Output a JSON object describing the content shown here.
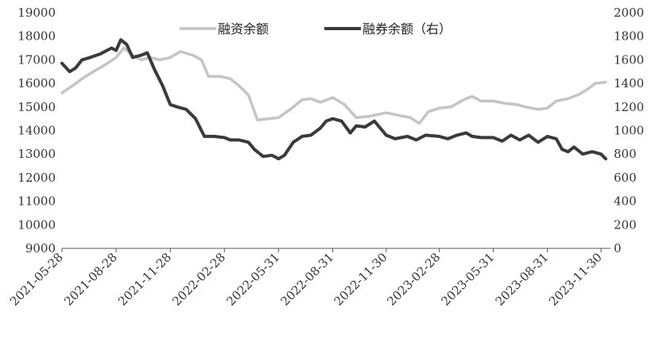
{
  "chart_data": {
    "type": "line",
    "title": "",
    "xlabel": "",
    "ylabel": "",
    "x_ticks": [
      "2021-05-28",
      "2021-08-28",
      "2021-11-28",
      "2022-02-28",
      "2022-05-31",
      "2022-08-31",
      "2022-11-30",
      "2023-02-28",
      "2023-05-31",
      "2023-08-31",
      "2023-11-30"
    ],
    "y_left": {
      "lim": [
        9000,
        19000
      ],
      "ticks": [
        9000,
        10000,
        11000,
        12000,
        13000,
        14000,
        15000,
        16000,
        17000,
        18000,
        19000
      ]
    },
    "y_right": {
      "lim": [
        0,
        2000
      ],
      "ticks": [
        0,
        200,
        400,
        600,
        800,
        1000,
        1200,
        1400,
        1600,
        1800,
        2000
      ]
    },
    "legend": {
      "placement": "top-center"
    },
    "series": [
      {
        "name": "融资余额",
        "axis": "left",
        "color": "#c4c4c4",
        "points": [
          [
            "2021-05-28",
            15600
          ],
          [
            "2021-06-15",
            15900
          ],
          [
            "2021-07-01",
            16200
          ],
          [
            "2021-07-20",
            16500
          ],
          [
            "2021-08-10",
            16800
          ],
          [
            "2021-08-28",
            17100
          ],
          [
            "2021-09-10",
            17500
          ],
          [
            "2021-09-25",
            17200
          ],
          [
            "2021-10-10",
            17000
          ],
          [
            "2021-10-25",
            17100
          ],
          [
            "2021-11-10",
            17000
          ],
          [
            "2021-11-28",
            17100
          ],
          [
            "2021-12-15",
            17350
          ],
          [
            "2022-01-05",
            17200
          ],
          [
            "2022-01-20",
            17000
          ],
          [
            "2022-02-01",
            16300
          ],
          [
            "2022-02-20",
            16300
          ],
          [
            "2022-03-10",
            16200
          ],
          [
            "2022-03-25",
            15900
          ],
          [
            "2022-04-10",
            15500
          ],
          [
            "2022-04-25",
            14450
          ],
          [
            "2022-05-15",
            14500
          ],
          [
            "2022-05-31",
            14550
          ],
          [
            "2022-06-20",
            14900
          ],
          [
            "2022-07-10",
            15300
          ],
          [
            "2022-07-25",
            15350
          ],
          [
            "2022-08-10",
            15200
          ],
          [
            "2022-08-31",
            15400
          ],
          [
            "2022-09-20",
            15100
          ],
          [
            "2022-10-10",
            14550
          ],
          [
            "2022-10-31",
            14600
          ],
          [
            "2022-11-30",
            14750
          ],
          [
            "2022-12-20",
            14650
          ],
          [
            "2023-01-10",
            14550
          ],
          [
            "2023-01-25",
            14300
          ],
          [
            "2023-02-10",
            14800
          ],
          [
            "2023-02-28",
            14950
          ],
          [
            "2023-03-20",
            15000
          ],
          [
            "2023-04-10",
            15300
          ],
          [
            "2023-04-25",
            15450
          ],
          [
            "2023-05-10",
            15250
          ],
          [
            "2023-05-31",
            15250
          ],
          [
            "2023-06-20",
            15150
          ],
          [
            "2023-07-10",
            15100
          ],
          [
            "2023-07-25",
            15000
          ],
          [
            "2023-08-15",
            14900
          ],
          [
            "2023-08-31",
            14950
          ],
          [
            "2023-09-15",
            15250
          ],
          [
            "2023-10-05",
            15350
          ],
          [
            "2023-10-25",
            15550
          ],
          [
            "2023-11-10",
            15800
          ],
          [
            "2023-11-20",
            16000
          ],
          [
            "2023-12-08",
            16050
          ]
        ]
      },
      {
        "name": "融券余额（右）",
        "axis": "right",
        "color": "#3a3a3a",
        "points": [
          [
            "2021-05-28",
            1570
          ],
          [
            "2021-06-10",
            1500
          ],
          [
            "2021-06-20",
            1530
          ],
          [
            "2021-07-01",
            1600
          ],
          [
            "2021-07-15",
            1620
          ],
          [
            "2021-08-01",
            1650
          ],
          [
            "2021-08-20",
            1700
          ],
          [
            "2021-08-28",
            1680
          ],
          [
            "2021-09-05",
            1770
          ],
          [
            "2021-09-15",
            1730
          ],
          [
            "2021-09-25",
            1620
          ],
          [
            "2021-10-10",
            1640
          ],
          [
            "2021-10-20",
            1660
          ],
          [
            "2021-11-01",
            1520
          ],
          [
            "2021-11-15",
            1380
          ],
          [
            "2021-11-28",
            1220
          ],
          [
            "2021-12-10",
            1200
          ],
          [
            "2021-12-25",
            1180
          ],
          [
            "2022-01-10",
            1100
          ],
          [
            "2022-01-25",
            950
          ],
          [
            "2022-02-10",
            950
          ],
          [
            "2022-02-28",
            940
          ],
          [
            "2022-03-10",
            920
          ],
          [
            "2022-03-25",
            920
          ],
          [
            "2022-04-10",
            900
          ],
          [
            "2022-04-20",
            840
          ],
          [
            "2022-05-05",
            780
          ],
          [
            "2022-05-20",
            790
          ],
          [
            "2022-05-31",
            760
          ],
          [
            "2022-06-10",
            790
          ],
          [
            "2022-06-25",
            900
          ],
          [
            "2022-07-10",
            950
          ],
          [
            "2022-07-25",
            960
          ],
          [
            "2022-08-10",
            1020
          ],
          [
            "2022-08-20",
            1080
          ],
          [
            "2022-08-31",
            1100
          ],
          [
            "2022-09-15",
            1080
          ],
          [
            "2022-09-30",
            980
          ],
          [
            "2022-10-10",
            1040
          ],
          [
            "2022-10-25",
            1030
          ],
          [
            "2022-11-10",
            1080
          ],
          [
            "2022-11-30",
            960
          ],
          [
            "2022-12-15",
            930
          ],
          [
            "2023-01-05",
            950
          ],
          [
            "2023-01-20",
            920
          ],
          [
            "2023-02-05",
            960
          ],
          [
            "2023-02-28",
            950
          ],
          [
            "2023-03-15",
            930
          ],
          [
            "2023-03-30",
            960
          ],
          [
            "2023-04-15",
            980
          ],
          [
            "2023-04-25",
            950
          ],
          [
            "2023-05-10",
            940
          ],
          [
            "2023-05-31",
            940
          ],
          [
            "2023-06-15",
            910
          ],
          [
            "2023-06-30",
            960
          ],
          [
            "2023-07-15",
            920
          ],
          [
            "2023-07-30",
            960
          ],
          [
            "2023-08-15",
            900
          ],
          [
            "2023-08-31",
            950
          ],
          [
            "2023-09-15",
            930
          ],
          [
            "2023-09-25",
            840
          ],
          [
            "2023-10-05",
            820
          ],
          [
            "2023-10-15",
            860
          ],
          [
            "2023-10-30",
            800
          ],
          [
            "2023-11-15",
            820
          ],
          [
            "2023-11-30",
            800
          ],
          [
            "2023-12-08",
            760
          ]
        ]
      }
    ]
  }
}
